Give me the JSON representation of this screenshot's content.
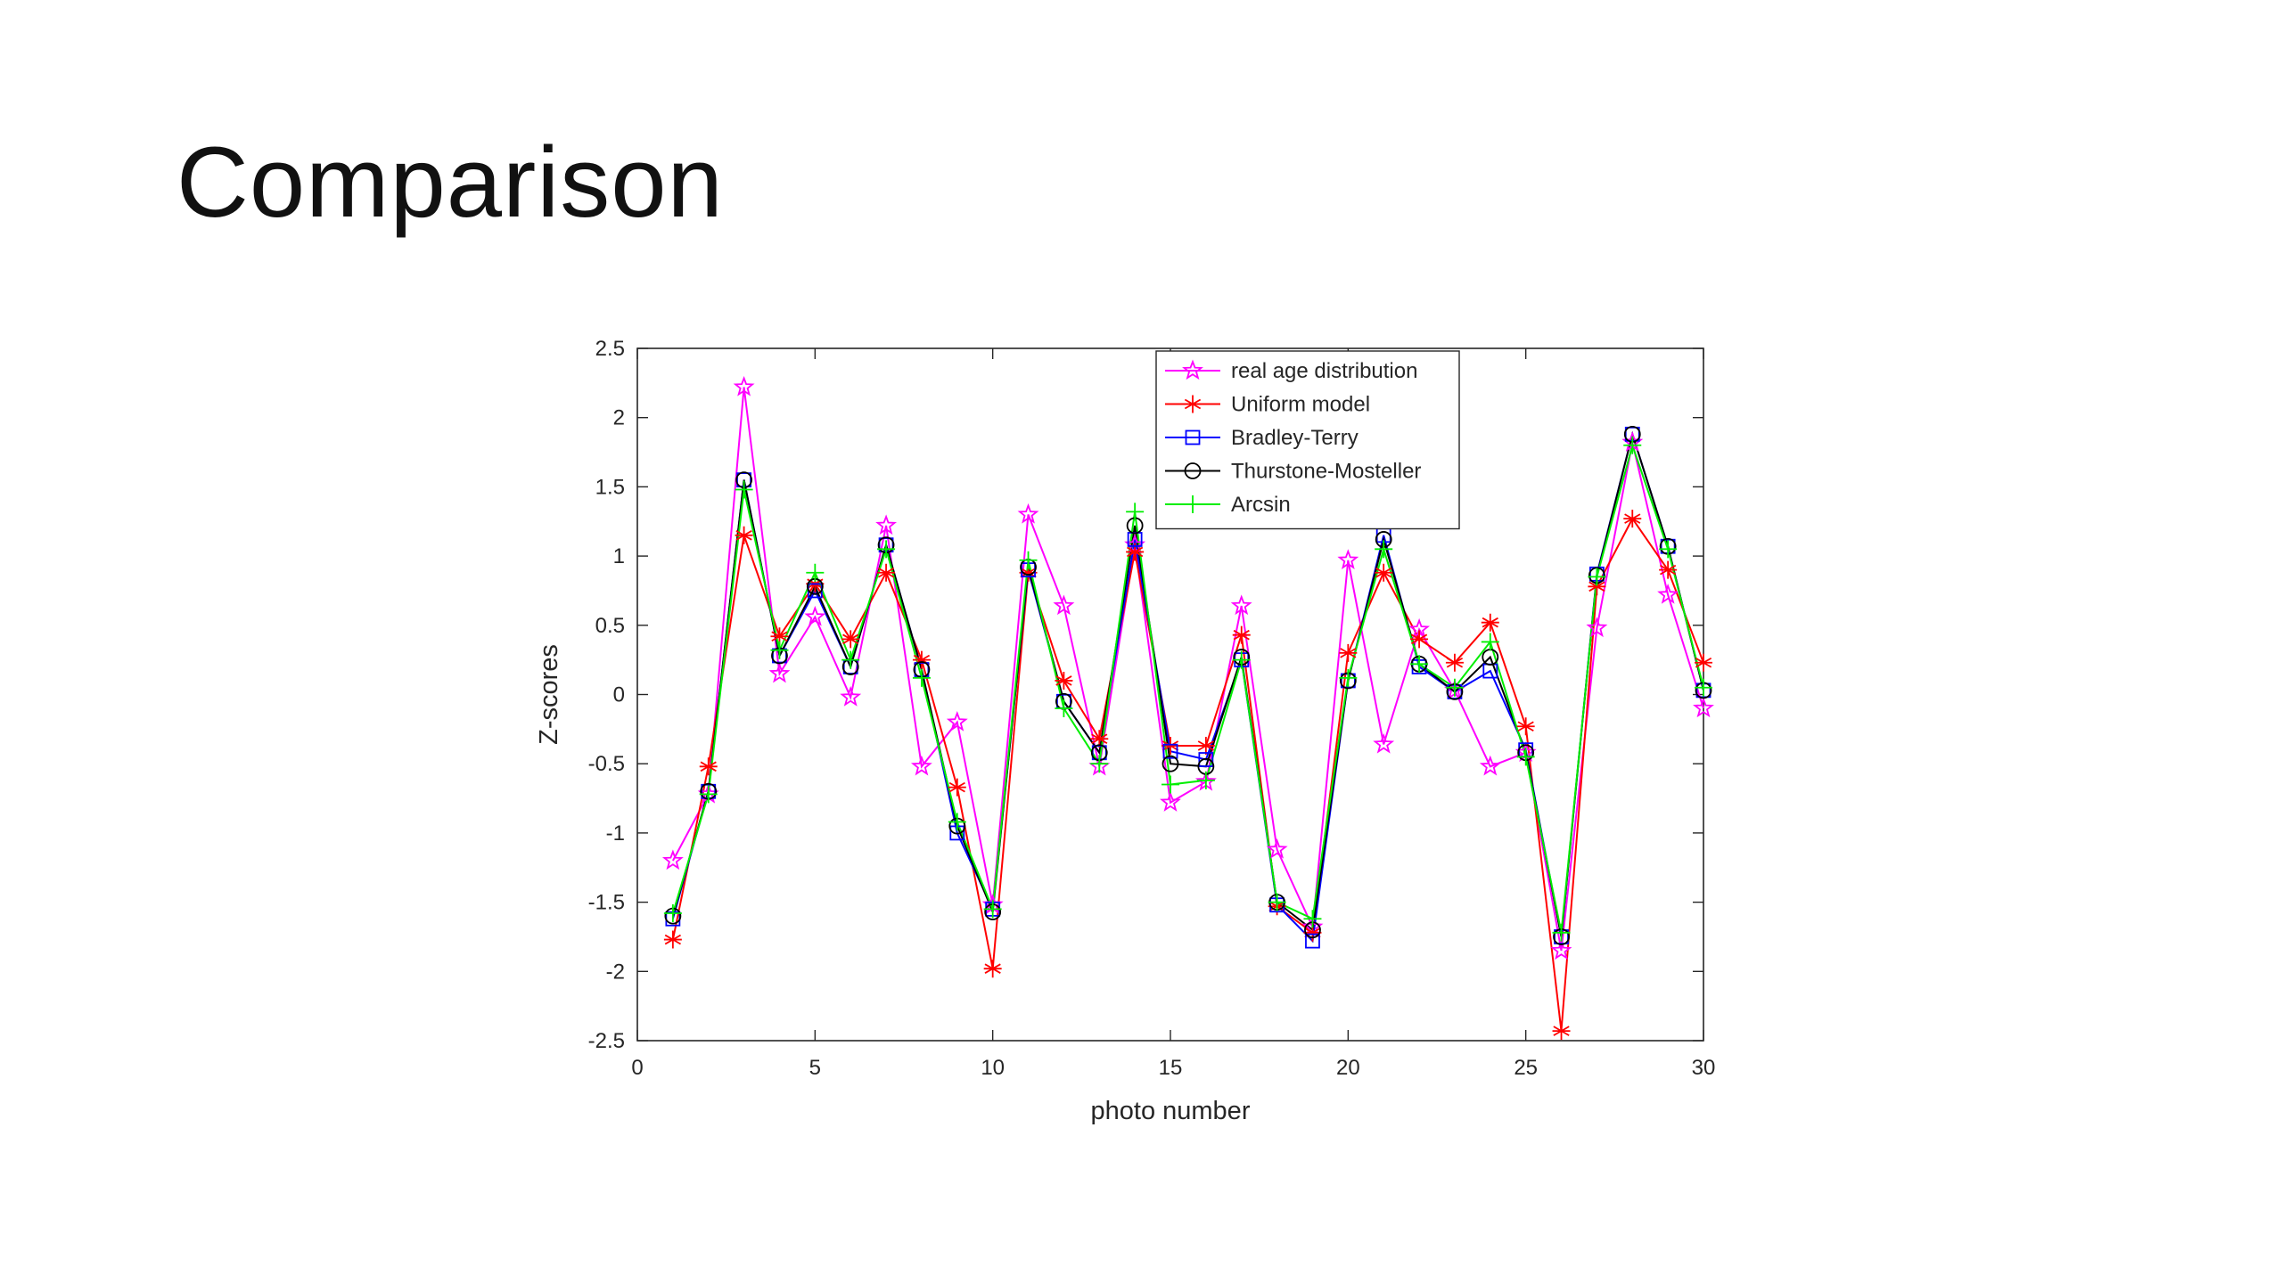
{
  "slide": {
    "title": "Comparison"
  },
  "chart_data": {
    "type": "line",
    "xlabel": "photo number",
    "ylabel": "Z-scores",
    "xlim": [
      0,
      30
    ],
    "ylim": [
      -2.5,
      2.5
    ],
    "xticks": [
      0,
      5,
      10,
      15,
      20,
      25,
      30
    ],
    "yticks": [
      2.5,
      2,
      1.5,
      1,
      0.5,
      0,
      -0.5,
      -1,
      -1.5,
      -2,
      -2.5
    ],
    "grid": false,
    "legend_position": "top-right",
    "x": [
      1,
      2,
      3,
      4,
      5,
      6,
      7,
      8,
      9,
      10,
      11,
      12,
      13,
      14,
      15,
      16,
      17,
      18,
      19,
      20,
      21,
      22,
      23,
      24,
      25,
      26,
      27,
      28,
      29,
      30
    ],
    "series": [
      {
        "name": "real age distribution",
        "color": "#ff00ff",
        "marker": "star",
        "values": [
          -1.2,
          -0.72,
          2.22,
          0.15,
          0.56,
          -0.02,
          1.22,
          -0.52,
          -0.2,
          -1.52,
          1.3,
          0.64,
          -0.52,
          1.08,
          -0.78,
          -0.63,
          0.64,
          -1.12,
          -1.68,
          0.97,
          -0.36,
          0.47,
          0.03,
          -0.52,
          -0.42,
          -1.85,
          0.48,
          1.82,
          0.72,
          -0.1
        ]
      },
      {
        "name": "Uniform model",
        "color": "#ff0000",
        "marker": "asterisk",
        "values": [
          -1.77,
          -0.52,
          1.15,
          0.42,
          0.8,
          0.4,
          0.88,
          0.25,
          -0.67,
          -1.98,
          0.88,
          0.1,
          -0.32,
          1.03,
          -0.37,
          -0.37,
          0.43,
          -1.53,
          -1.72,
          0.3,
          0.88,
          0.4,
          0.23,
          0.52,
          -0.23,
          -2.43,
          0.78,
          1.27,
          0.9,
          0.23
        ]
      },
      {
        "name": "Bradley-Terry",
        "color": "#0000ff",
        "marker": "square",
        "values": [
          -1.62,
          -0.7,
          1.55,
          0.28,
          0.75,
          0.2,
          1.08,
          0.18,
          -1.0,
          -1.55,
          0.9,
          -0.05,
          -0.42,
          1.12,
          -0.41,
          -0.47,
          0.25,
          -1.52,
          -1.78,
          0.1,
          1.15,
          0.2,
          0.02,
          0.17,
          -0.4,
          -1.75,
          0.87,
          1.88,
          1.07,
          0.03
        ]
      },
      {
        "name": "Thurstone-Mosteller",
        "color": "#000000",
        "marker": "circle",
        "values": [
          -1.6,
          -0.7,
          1.55,
          0.28,
          0.78,
          0.2,
          1.08,
          0.18,
          -0.95,
          -1.57,
          0.92,
          -0.05,
          -0.42,
          1.22,
          -0.5,
          -0.52,
          0.27,
          -1.5,
          -1.7,
          0.1,
          1.12,
          0.22,
          0.02,
          0.27,
          -0.42,
          -1.75,
          0.86,
          1.88,
          1.07,
          0.03
        ]
      },
      {
        "name": "Arcsin",
        "color": "#00ee00",
        "marker": "plus",
        "values": [
          -1.58,
          -0.72,
          1.48,
          0.32,
          0.88,
          0.25,
          1.05,
          0.12,
          -0.92,
          -1.55,
          0.97,
          -0.1,
          -0.5,
          1.32,
          -0.65,
          -0.62,
          0.25,
          -1.5,
          -1.62,
          0.12,
          1.05,
          0.22,
          0.05,
          0.38,
          -0.45,
          -1.72,
          0.85,
          1.8,
          1.05,
          0.05
        ]
      }
    ]
  }
}
